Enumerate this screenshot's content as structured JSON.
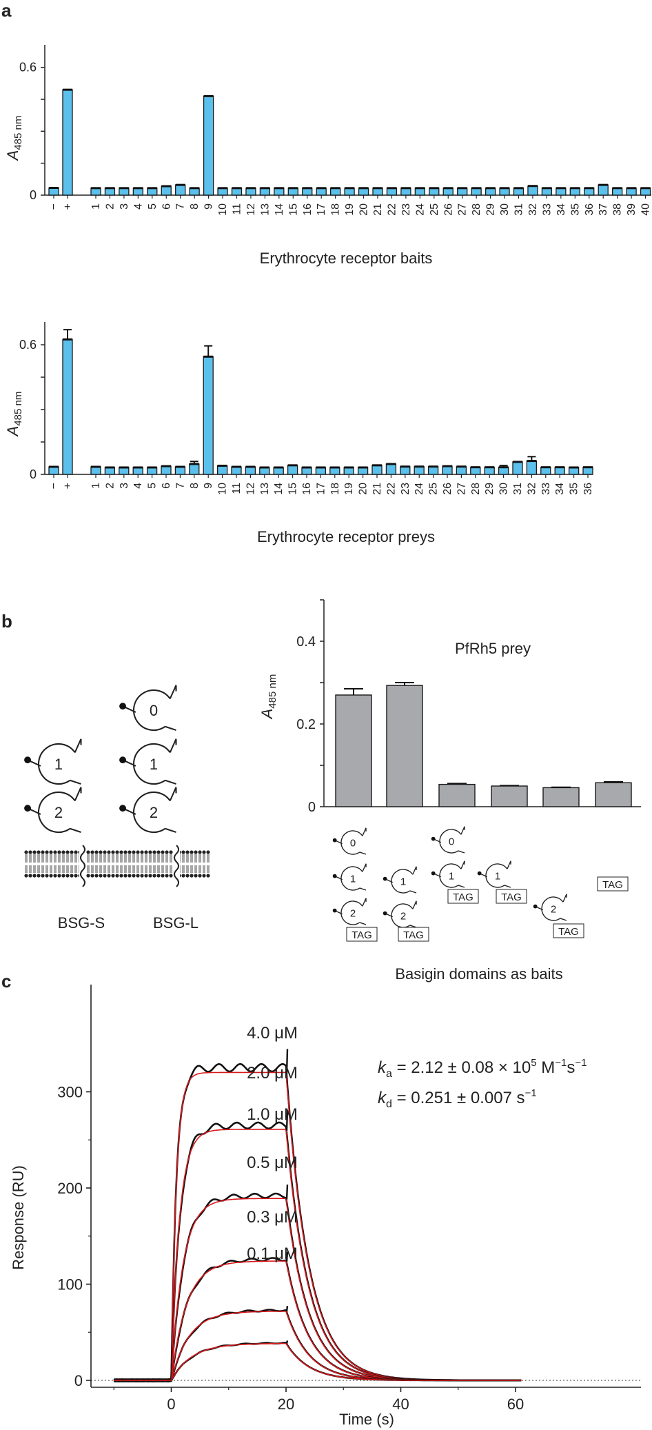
{
  "panel_labels": {
    "a": "a",
    "b": "b",
    "c": "c"
  },
  "chart_data": [
    {
      "type": "bar",
      "panel": "a",
      "ylabel": "A",
      "ylabel_sub": "485 nm",
      "xlabel": "Erythrocyte receptor baits",
      "ylim": [
        0,
        0.68
      ],
      "yticks": [
        0,
        0.6
      ],
      "controls": {
        "categories": [
          "−",
          "+"
        ],
        "values": [
          0.034,
          0.495
        ]
      },
      "categories": [
        "1",
        "2",
        "3",
        "4",
        "5",
        "6",
        "7",
        "8",
        "9",
        "10",
        "11",
        "12",
        "13",
        "14",
        "15",
        "16",
        "17",
        "18",
        "19",
        "20",
        "21",
        "22",
        "23",
        "24",
        "25",
        "26",
        "27",
        "28",
        "29",
        "30",
        "31",
        "32",
        "33",
        "34",
        "35",
        "36",
        "37",
        "38",
        "39",
        "40"
      ],
      "values": [
        0.033,
        0.033,
        0.033,
        0.033,
        0.033,
        0.042,
        0.048,
        0.033,
        0.465,
        0.033,
        0.033,
        0.033,
        0.033,
        0.033,
        0.033,
        0.033,
        0.033,
        0.033,
        0.033,
        0.033,
        0.033,
        0.033,
        0.033,
        0.033,
        0.033,
        0.033,
        0.033,
        0.033,
        0.033,
        0.033,
        0.033,
        0.043,
        0.033,
        0.033,
        0.033,
        0.033,
        0.048,
        0.033,
        0.033,
        0.033
      ],
      "bar_color": "#5bc0eb"
    },
    {
      "type": "bar",
      "panel": "a",
      "ylabel": "A",
      "ylabel_sub": "485 nm",
      "xlabel": "Erythrocyte receptor preys",
      "ylim": [
        0,
        0.68
      ],
      "yticks": [
        0,
        0.6
      ],
      "controls": {
        "categories": [
          "−",
          "+"
        ],
        "values": [
          0.035,
          0.625
        ],
        "errors": [
          0.0,
          0.045
        ]
      },
      "categories": [
        "1",
        "2",
        "3",
        "4",
        "5",
        "6",
        "7",
        "8",
        "9",
        "10",
        "11",
        "12",
        "13",
        "14",
        "15",
        "16",
        "17",
        "18",
        "19",
        "20",
        "21",
        "22",
        "23",
        "24",
        "25",
        "26",
        "27",
        "28",
        "29",
        "30",
        "31",
        "32",
        "33",
        "34",
        "35",
        "36"
      ],
      "values": [
        0.035,
        0.032,
        0.032,
        0.032,
        0.032,
        0.038,
        0.035,
        0.048,
        0.545,
        0.04,
        0.035,
        0.035,
        0.032,
        0.032,
        0.042,
        0.032,
        0.032,
        0.032,
        0.032,
        0.032,
        0.042,
        0.048,
        0.036,
        0.036,
        0.036,
        0.038,
        0.036,
        0.033,
        0.033,
        0.033,
        0.058,
        0.062,
        0.033,
        0.033,
        0.032,
        0.033
      ],
      "errors": [
        0,
        0,
        0,
        0,
        0,
        0,
        0,
        0.012,
        0.05,
        0,
        0,
        0,
        0,
        0,
        0,
        0,
        0,
        0,
        0,
        0,
        0,
        0,
        0,
        0,
        0,
        0,
        0,
        0,
        0,
        0.008,
        0,
        0.02,
        0,
        0,
        0,
        0
      ],
      "bar_color": "#5bc0eb"
    },
    {
      "type": "bar",
      "panel": "b",
      "title": "PfRh5 prey",
      "ylabel": "A",
      "ylabel_sub": "485 nm",
      "xlabel": "Basigin domains as baits",
      "ylim": [
        0,
        0.5
      ],
      "yticks": [
        0,
        0.2,
        0.4
      ],
      "values": [
        0.27,
        0.293,
        0.054,
        0.05,
        0.046,
        0.058
      ],
      "errors": [
        0.015,
        0.007,
        0.002,
        0.001,
        0.001,
        0.002
      ],
      "bar_color": "#a7a9ac"
    },
    {
      "type": "line",
      "panel": "c",
      "xlabel": "Time (s)",
      "ylabel": "Response (RU)",
      "xlim": [
        -10,
        61
      ],
      "ylim": [
        -10,
        350
      ],
      "xticks": [
        0,
        20,
        40,
        60
      ],
      "yticks": [
        0,
        100,
        200,
        300
      ],
      "series": [
        {
          "name": "4.0 μM",
          "plateau": 325
        },
        {
          "name": "2.0 μM",
          "plateau": 265
        },
        {
          "name": "1.0 μM",
          "plateau": 192
        },
        {
          "name": "0.5 μM",
          "plateau": 126
        },
        {
          "name": "0.3 μM",
          "plateau": 73
        },
        {
          "name": "0.1 μM",
          "plateau": 39
        }
      ],
      "association_end": 20,
      "kinetics": {
        "ka": {
          "sym": "k",
          "sub": "a",
          "text": " = 2.12 ± 0.08 × 10",
          "exp": "5",
          "unit": " M",
          "unit_exp1": "−1",
          "unit2": "s",
          "unit_exp2": "−1"
        },
        "kd": {
          "sym": "k",
          "sub": "d",
          "text": " = 0.251 ± 0.007 s",
          "exp": "−1"
        }
      },
      "data_color": "#111111",
      "fit_color": "#d7191c"
    }
  ],
  "diagram_b": {
    "domain_labels": [
      "0",
      "1",
      "2"
    ],
    "isoform_labels": [
      "BSG-S",
      "BSG-L"
    ],
    "tag_label": "TAG"
  }
}
